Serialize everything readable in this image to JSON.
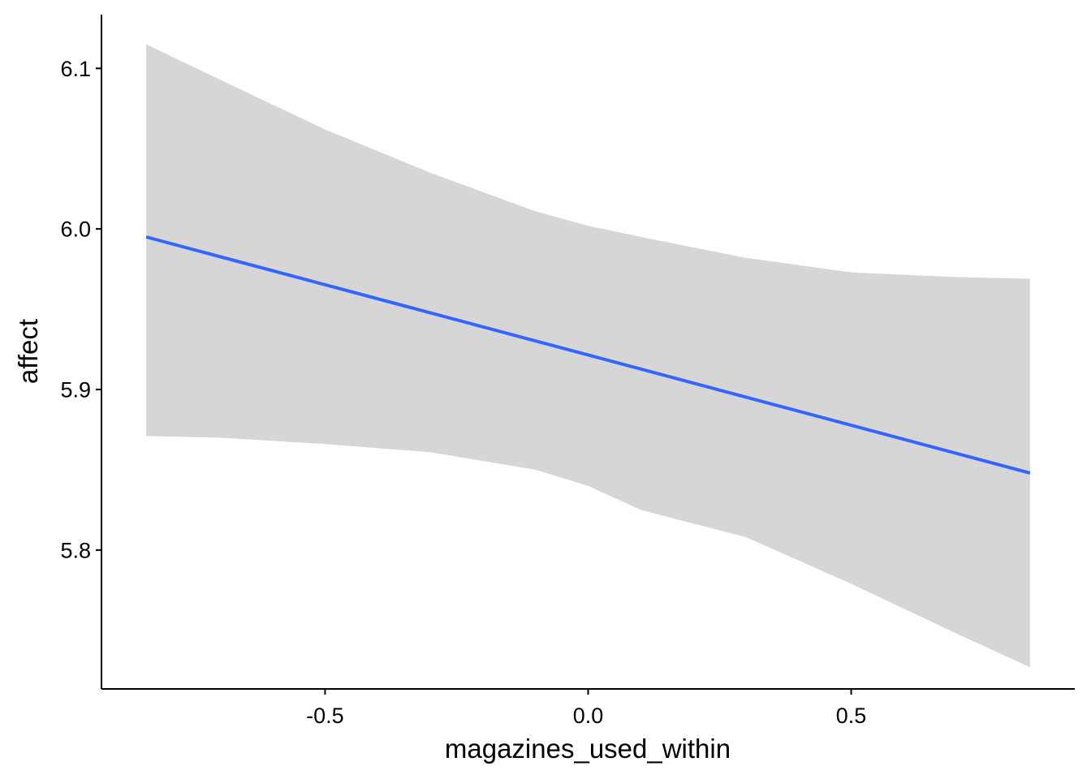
{
  "chart_data": {
    "type": "line",
    "title": "",
    "xlabel": "magazines_used_within",
    "ylabel": "affect",
    "xlim": [
      -0.925,
      0.925
    ],
    "ylim": [
      5.7135,
      6.1335
    ],
    "x_ticks": [
      -0.5,
      0.0,
      0.5
    ],
    "x_tick_labels": [
      "-0.5",
      "0.0",
      "0.5"
    ],
    "y_ticks": [
      5.8,
      5.9,
      6.0,
      6.1
    ],
    "y_tick_labels": [
      "5.8",
      "5.9",
      "6.0",
      "6.1"
    ],
    "grid": false,
    "legend": "none",
    "series": [
      {
        "x": [
          -0.84,
          0.84
        ],
        "y": [
          5.995,
          5.848
        ],
        "color": "#3366ff"
      }
    ],
    "ribbon": {
      "color": "#d6d6d6",
      "x": [
        -0.84,
        -0.7,
        -0.5,
        -0.3,
        -0.1,
        0.0,
        0.1,
        0.3,
        0.5,
        0.7,
        0.84
      ],
      "upper": [
        6.115,
        6.093,
        6.062,
        6.035,
        6.011,
        6.002,
        5.995,
        5.982,
        5.973,
        5.97,
        5.969
      ],
      "lower": [
        5.871,
        5.87,
        5.866,
        5.861,
        5.85,
        5.84,
        5.825,
        5.808,
        5.779,
        5.748,
        5.727
      ]
    }
  }
}
